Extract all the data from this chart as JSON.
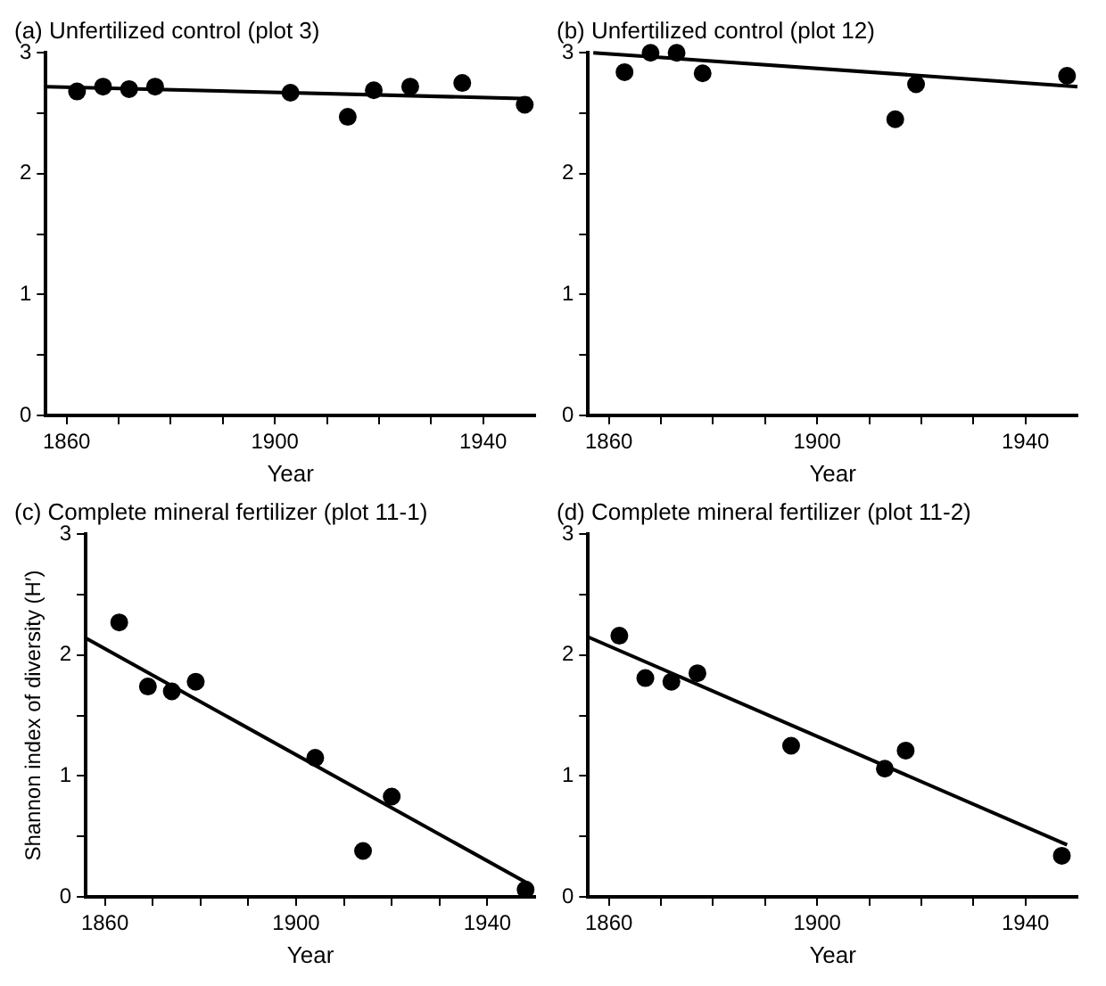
{
  "chart_data": [
    {
      "type": "scatter",
      "title": "(a) Unfertilized control (plot 3)",
      "xlabel": "Year",
      "xlim": [
        1856,
        1950
      ],
      "xticks": [
        1860,
        {
          "value": 1870,
          "label": null
        },
        {
          "value": 1880,
          "label": null
        },
        {
          "value": 1890,
          "label": null
        },
        1900,
        {
          "value": 1910,
          "label": null
        },
        {
          "value": 1920,
          "label": null
        },
        {
          "value": 1930,
          "label": null
        },
        1940
      ],
      "ylim": [
        0,
        3
      ],
      "yticks": [
        0,
        {
          "value": 0.5,
          "label": null
        },
        1,
        {
          "value": 1.5,
          "label": null
        },
        2,
        {
          "value": 2.5,
          "label": null
        },
        3
      ],
      "series": [
        {
          "type": "scatter",
          "color": "#000000",
          "marker": "circle",
          "x": [
            1862,
            1867,
            1872,
            1877,
            1903,
            1914,
            1919,
            1926,
            1936,
            1948
          ],
          "values": [
            2.68,
            2.72,
            2.7,
            2.72,
            2.67,
            2.47,
            2.69,
            2.72,
            2.75,
            2.57
          ]
        },
        {
          "type": "line",
          "color": "#000000",
          "marker": "none",
          "x": [
            1856,
            1949
          ],
          "values": [
            2.72,
            2.62
          ]
        }
      ]
    },
    {
      "type": "scatter",
      "title": "(b) Unfertilized control (plot 12)",
      "xlabel": "Year",
      "xlim": [
        1856,
        1950
      ],
      "xticks": [
        1860,
        {
          "value": 1870,
          "label": null
        },
        {
          "value": 1880,
          "label": null
        },
        {
          "value": 1890,
          "label": null
        },
        1900,
        {
          "value": 1910,
          "label": null
        },
        {
          "value": 1920,
          "label": null
        },
        {
          "value": 1930,
          "label": null
        },
        1940
      ],
      "ylim": [
        0,
        3
      ],
      "yticks": [
        0,
        {
          "value": 0.5,
          "label": null
        },
        1,
        {
          "value": 1.5,
          "label": null
        },
        2,
        {
          "value": 2.5,
          "label": null
        },
        3
      ],
      "series": [
        {
          "type": "scatter",
          "color": "#000000",
          "marker": "circle",
          "x": [
            1863,
            1868,
            1873,
            1878,
            1915,
            1919,
            1948
          ],
          "values": [
            2.84,
            3.0,
            3.0,
            2.83,
            2.45,
            2.74,
            2.81
          ]
        },
        {
          "type": "line",
          "color": "#000000",
          "marker": "none",
          "x": [
            1857,
            1950
          ],
          "values": [
            3.0,
            2.72
          ]
        }
      ]
    },
    {
      "type": "scatter",
      "title": "(c) Complete mineral fertilizer (plot 11-1)",
      "xlabel": "Year",
      "ylabel": "Shannon index of diversity (H′)",
      "xlim": [
        1856,
        1950
      ],
      "xticks": [
        1860,
        {
          "value": 1870,
          "label": null
        },
        {
          "value": 1880,
          "label": null
        },
        {
          "value": 1890,
          "label": null
        },
        1900,
        {
          "value": 1910,
          "label": null
        },
        {
          "value": 1920,
          "label": null
        },
        {
          "value": 1930,
          "label": null
        },
        1940
      ],
      "ylim": [
        0,
        3
      ],
      "yticks": [
        0,
        {
          "value": 0.5,
          "label": null
        },
        1,
        {
          "value": 1.5,
          "label": null
        },
        2,
        {
          "value": 2.5,
          "label": null
        },
        3
      ],
      "series": [
        {
          "type": "scatter",
          "color": "#000000",
          "marker": "circle",
          "x": [
            1863,
            1869,
            1874,
            1879,
            1904,
            1914,
            1920,
            1948
          ],
          "values": [
            2.27,
            1.74,
            1.7,
            1.78,
            1.15,
            0.38,
            0.83,
            0.06
          ]
        },
        {
          "type": "line",
          "color": "#000000",
          "marker": "none",
          "x": [
            1856,
            1949
          ],
          "values": [
            2.14,
            0.1
          ]
        }
      ]
    },
    {
      "type": "scatter",
      "title": "(d) Complete mineral fertilizer (plot 11-2)",
      "xlabel": "Year",
      "xlim": [
        1856,
        1950
      ],
      "xticks": [
        1860,
        {
          "value": 1870,
          "label": null
        },
        {
          "value": 1880,
          "label": null
        },
        {
          "value": 1890,
          "label": null
        },
        1900,
        {
          "value": 1910,
          "label": null
        },
        {
          "value": 1920,
          "label": null
        },
        {
          "value": 1930,
          "label": null
        },
        1940
      ],
      "ylim": [
        0,
        3
      ],
      "yticks": [
        0,
        {
          "value": 0.5,
          "label": null
        },
        1,
        {
          "value": 1.5,
          "label": null
        },
        2,
        {
          "value": 2.5,
          "label": null
        },
        3
      ],
      "series": [
        {
          "type": "scatter",
          "color": "#000000",
          "marker": "circle",
          "x": [
            1862,
            1867,
            1872,
            1877,
            1895,
            1913,
            1917,
            1947
          ],
          "values": [
            2.16,
            1.81,
            1.78,
            1.85,
            1.25,
            1.06,
            1.21,
            0.34
          ]
        },
        {
          "type": "line",
          "color": "#000000",
          "marker": "none",
          "x": [
            1856,
            1948
          ],
          "values": [
            2.15,
            0.43
          ]
        }
      ]
    }
  ]
}
